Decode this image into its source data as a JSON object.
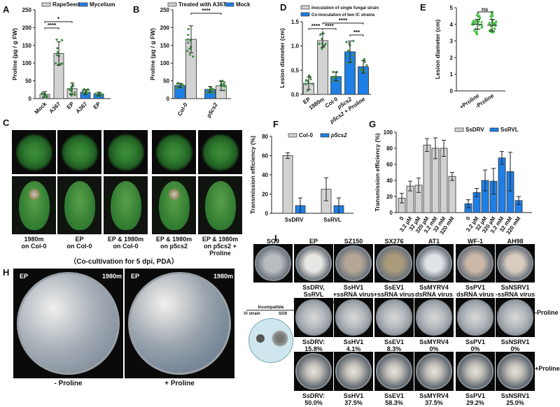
{
  "panels": {
    "A": "A",
    "B": "B",
    "C": "C",
    "D": "D",
    "E": "E",
    "F": "F",
    "G": "G",
    "H": "H",
    "I": "I"
  },
  "colors": {
    "grey": "#d2d2d2",
    "blue": "#1e7fe6",
    "dots": "#3f8f46",
    "e_dots": "#44c044"
  },
  "chart_data": [
    {
      "id": "A",
      "type": "bar",
      "ylabel": "Proline (µg / g FW)",
      "ylim": [
        0,
        250
      ],
      "yticks": [
        "0",
        "50",
        "100",
        "150",
        "200",
        "250"
      ],
      "categories": [
        "Mock",
        "A367",
        "EP",
        "A367",
        "EP"
      ],
      "legend": [
        {
          "name": "RapeSeed",
          "color": "grey"
        },
        {
          "name": "Mycelium",
          "color": "blue"
        }
      ],
      "bars": [
        {
          "value": 12,
          "err": 8,
          "color": "grey"
        },
        {
          "value": 127,
          "err": 33,
          "color": "grey"
        },
        {
          "value": 28,
          "err": 16,
          "color": "grey"
        },
        {
          "value": 18,
          "err": 7,
          "color": "blue"
        },
        {
          "value": 13,
          "err": 5,
          "color": "blue"
        }
      ],
      "annotations": [
        {
          "label": "****",
          "from": 0,
          "to": 1
        },
        {
          "label": "*",
          "from": 0,
          "to": 2
        }
      ]
    },
    {
      "id": "B",
      "type": "bar",
      "ylabel": "Proline (µg / g FW)",
      "ylim": [
        0,
        250
      ],
      "yticks": [
        "0",
        "50",
        "100",
        "150",
        "200",
        "250"
      ],
      "categories": [
        "Col-0",
        "p5cs2"
      ],
      "legend": [
        {
          "name": "Treated with A367",
          "color": "grey"
        },
        {
          "name": "Mock",
          "color": "blue"
        }
      ],
      "bars": [
        {
          "value": 37,
          "err": 6,
          "color": "blue"
        },
        {
          "value": 167,
          "err": 38,
          "color": "grey"
        },
        {
          "value": 26,
          "err": 8,
          "color": "blue"
        },
        {
          "value": 36,
          "err": 13,
          "color": "grey"
        }
      ],
      "annotations": [
        {
          "label": "****",
          "from": 1,
          "to": 3
        }
      ]
    },
    {
      "id": "D",
      "type": "bar",
      "ylabel": "Lesion diameter (cm)",
      "ylim": [
        0,
        1.5
      ],
      "yticks": [
        "0.0",
        "0.5",
        "1.0",
        "1.5"
      ],
      "categories": [
        "EP",
        "1980m",
        "Col-0",
        "p5cs2",
        "p5cs2 + Proline"
      ],
      "legend": [
        {
          "name": "Inoculation of single fungal strain",
          "color": "grey"
        },
        {
          "name": "Co-inoculation of two IC strains",
          "color": "blue"
        }
      ],
      "bars": [
        {
          "value": 0.23,
          "err": 0.13,
          "color": "grey"
        },
        {
          "value": 1.11,
          "err": 0.14,
          "color": "grey"
        },
        {
          "value": 0.37,
          "err": 0.09,
          "color": "blue"
        },
        {
          "value": 0.88,
          "err": 0.22,
          "color": "blue"
        },
        {
          "value": 0.57,
          "err": 0.13,
          "color": "blue"
        }
      ],
      "annotations": [
        {
          "label": "****",
          "from": 0,
          "to": 1
        },
        {
          "label": "****",
          "from": 1,
          "to": 2
        },
        {
          "label": "****",
          "from": 1,
          "to": 4
        },
        {
          "label": "***",
          "from": 3,
          "to": 4
        }
      ]
    },
    {
      "id": "E",
      "type": "scatter",
      "ylabel": "Lesion diameter (cm)",
      "ylim": [
        0,
        5
      ],
      "yticks": [
        "0",
        "1",
        "2",
        "3",
        "4",
        "5"
      ],
      "categories": [
        "+Proline",
        "-Proline"
      ],
      "groups": [
        {
          "mean": 4.0,
          "sd": 0.3,
          "min": 3.4,
          "max": 4.7,
          "n": 40
        },
        {
          "mean": 3.95,
          "sd": 0.35,
          "min": 3.5,
          "max": 4.8,
          "n": 40
        }
      ],
      "annotations": [
        {
          "label": "ns",
          "from": 0,
          "to": 1
        }
      ]
    },
    {
      "id": "F",
      "type": "bar",
      "ylabel": "Transmission efficiency (%)",
      "ylim": [
        0,
        80
      ],
      "yticks": [
        "0",
        "20",
        "40",
        "60",
        "80"
      ],
      "categories": [
        "SsDRV",
        "SsRVL"
      ],
      "legend": [
        {
          "name": "Col-0",
          "color": "grey"
        },
        {
          "name": "p5cs2",
          "color": "blue"
        }
      ],
      "bars": [
        {
          "value": 60,
          "err": 3,
          "color": "grey"
        },
        {
          "value": 8,
          "err": 8,
          "color": "blue"
        },
        {
          "value": 25,
          "err": 12,
          "color": "grey"
        },
        {
          "value": 8,
          "err": 8,
          "color": "blue"
        }
      ]
    },
    {
      "id": "G",
      "type": "bar",
      "ylabel": "Transmission efficiency (%)",
      "ylim": [
        0,
        100
      ],
      "yticks": [
        "0",
        "20",
        "40",
        "60",
        "80",
        "100"
      ],
      "categories": [
        "0",
        "3.2 µM",
        "32 µM",
        "320 µM",
        "3.2 mM",
        "32 mM",
        "320 mM",
        "0",
        "3.2 µM",
        "32 µM",
        "320 µM",
        "3.2 mM",
        "32 mM",
        "320 mM"
      ],
      "legend": [
        {
          "name": "SsDRV",
          "color": "grey"
        },
        {
          "name": "SsRVL",
          "color": "blue"
        }
      ],
      "bars": [
        {
          "value": 18,
          "err": 6,
          "color": "grey"
        },
        {
          "value": 33,
          "err": 6,
          "color": "grey"
        },
        {
          "value": 34,
          "err": 9,
          "color": "grey"
        },
        {
          "value": 84,
          "err": 8,
          "color": "grey"
        },
        {
          "value": 80,
          "err": 13,
          "color": "grey"
        },
        {
          "value": 80,
          "err": 10,
          "color": "grey"
        },
        {
          "value": 45,
          "err": 5,
          "color": "grey"
        },
        {
          "value": 11,
          "err": 5,
          "color": "blue"
        },
        {
          "value": 25,
          "err": 5,
          "color": "blue"
        },
        {
          "value": 40,
          "err": 13,
          "color": "blue"
        },
        {
          "value": 39,
          "err": 16,
          "color": "blue"
        },
        {
          "value": 68,
          "err": 8,
          "color": "blue"
        },
        {
          "value": 51,
          "err": 24,
          "color": "blue"
        },
        {
          "value": 15,
          "err": 5,
          "color": "blue"
        }
      ]
    }
  ],
  "panel_c": {
    "captions": [
      [
        "1980m",
        "on Col-0"
      ],
      [
        "EP",
        "on Col-0"
      ],
      [
        "EP & 1980m",
        "on Col-0"
      ],
      [
        "EP & 1980m",
        "on p5cs2"
      ],
      [
        "EP & 1980m",
        "on p5cs2 + Proline"
      ]
    ]
  },
  "panel_h": {
    "title": "（Co-cultivation for 5 dpi, PDA）",
    "left_strain": "EP",
    "right_strain": "1980m",
    "minus": "- Proline",
    "plus": "+ Proline"
  },
  "panel_i": {
    "strains": [
      "SG9",
      "EP",
      "SZ150",
      "SX276",
      "AT1",
      "WF-1",
      "AH98"
    ],
    "viruses": [
      [
        "SsDRV, SsRVL",
        "+ssRNA virus"
      ],
      [
        "SsHV1",
        "+ssRNA virus"
      ],
      [
        "SsEV1",
        "+ssRNA virus"
      ],
      [
        "SsMYRV4",
        "dsRNA virus"
      ],
      [
        "SsPV1",
        "dsRNA virus"
      ],
      [
        "SsNSRV1",
        "-ssRNA virus"
      ]
    ],
    "minus_rates": [
      [
        "SsDRV: 15.8%",
        "SsRVL: 8.3%"
      ],
      [
        "SsHV1",
        "4.1%"
      ],
      [
        "SsEV1",
        "8.3%"
      ],
      [
        "SsMYRV4",
        "0%"
      ],
      [
        "SsPV1",
        "0%"
      ],
      [
        "SsNSRV1",
        "0%"
      ]
    ],
    "plus_rates": [
      [
        "SsDRV: 50.0%",
        "SsRVL: 30.0%"
      ],
      [
        "SsHV1",
        "37.5%"
      ],
      [
        "SsEV1",
        "58.3%"
      ],
      [
        "SsMYRV4",
        "37.5%"
      ],
      [
        "SsPV1",
        "29.2%"
      ],
      [
        "SsNSRV1",
        "25.0%"
      ]
    ],
    "row_minus": "-Proline",
    "row_plus": "+Proline",
    "schematic": {
      "title": "Incompatible",
      "left": "VI strain",
      "right": "SG9"
    }
  }
}
